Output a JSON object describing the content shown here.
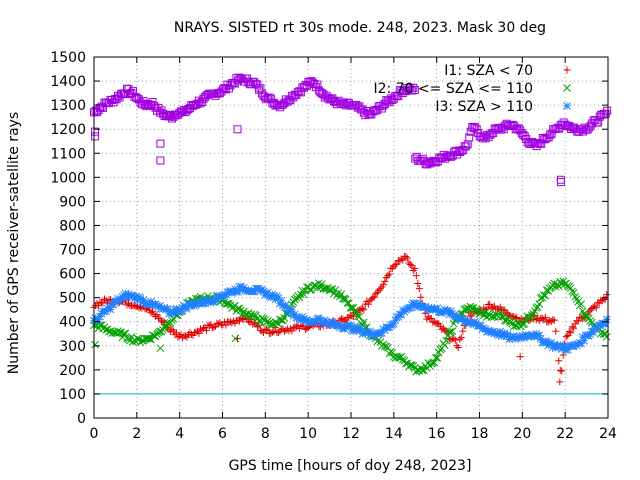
{
  "chart_data": {
    "type": "scatter",
    "title": "NRAYS. SISTED rt 30s mode. 248, 2023. Mask 30 deg",
    "xlabel": "GPS time [hours of doy 248, 2023]",
    "ylabel": "Number of GPS receiver-satellite rays",
    "xlim": [
      0,
      24
    ],
    "ylim": [
      0,
      1500
    ],
    "xticks": [
      0,
      2,
      4,
      6,
      8,
      10,
      12,
      14,
      16,
      18,
      20,
      22,
      24
    ],
    "yticks": [
      0,
      100,
      200,
      300,
      400,
      500,
      600,
      700,
      800,
      900,
      1000,
      1100,
      1200,
      1300,
      1400,
      1500
    ],
    "grid": true,
    "legend_position": "top-right",
    "threshold": {
      "value": 100,
      "color": "#00c0c0"
    },
    "series": [
      {
        "name": "I1: SZA < 70",
        "marker": "plus",
        "color": "#e00000",
        "x": [
          0.0,
          0.5,
          1.0,
          1.5,
          2.0,
          2.5,
          3.0,
          3.5,
          4.0,
          4.5,
          5.0,
          5.5,
          6.0,
          6.5,
          7.0,
          7.5,
          8.0,
          8.5,
          9.0,
          9.5,
          10.0,
          10.5,
          11.0,
          11.5,
          12.0,
          12.5,
          13.0,
          13.5,
          14.0,
          14.5,
          15.0,
          15.5,
          16.0,
          16.5,
          17.0,
          17.5,
          18.0,
          18.5,
          19.0,
          19.5,
          20.0,
          20.5,
          21.0,
          21.5,
          21.8,
          22.0,
          22.5,
          23.0,
          23.5,
          24.0
        ],
        "y": [
          470,
          485,
          490,
          480,
          470,
          450,
          420,
          370,
          340,
          350,
          365,
          380,
          390,
          400,
          420,
          390,
          360,
          365,
          370,
          375,
          380,
          385,
          390,
          400,
          420,
          450,
          500,
          560,
          640,
          670,
          610,
          420,
          390,
          350,
          300,
          430,
          440,
          470,
          450,
          430,
          400,
          420,
          410,
          400,
          170,
          320,
          400,
          430,
          470,
          510
        ],
        "outliers": [
          [
            6.7,
            330
          ],
          [
            19.9,
            255
          ],
          [
            21.75,
            150
          ]
        ]
      },
      {
        "name": "I2: 70 <= SZA <= 110",
        "marker": "x",
        "color": "#00a000",
        "x": [
          0.0,
          0.5,
          1.0,
          1.5,
          2.0,
          2.5,
          3.0,
          3.5,
          4.0,
          4.5,
          5.0,
          5.5,
          6.0,
          6.5,
          7.0,
          7.5,
          8.0,
          8.5,
          9.0,
          9.5,
          10.0,
          10.5,
          11.0,
          11.5,
          12.0,
          12.5,
          13.0,
          13.5,
          14.0,
          14.5,
          15.0,
          15.5,
          16.0,
          16.5,
          17.0,
          17.5,
          18.0,
          18.5,
          19.0,
          19.5,
          20.0,
          20.5,
          21.0,
          21.5,
          22.0,
          22.5,
          23.0,
          23.5,
          24.0
        ],
        "y": [
          390,
          370,
          355,
          340,
          320,
          330,
          350,
          400,
          440,
          480,
          495,
          500,
          490,
          460,
          440,
          420,
          400,
          390,
          430,
          500,
          540,
          550,
          540,
          510,
          460,
          400,
          340,
          300,
          260,
          240,
          200,
          210,
          250,
          330,
          420,
          460,
          440,
          420,
          430,
          390,
          390,
          440,
          510,
          550,
          560,
          510,
          420,
          370,
          340
        ],
        "outliers": [
          [
            0.05,
            305
          ],
          [
            3.1,
            290
          ],
          [
            6.6,
            330
          ]
        ]
      },
      {
        "name": "I3: SZA > 110",
        "marker": "star",
        "color": "#2080ff",
        "x": [
          0.0,
          0.5,
          1.0,
          1.5,
          2.0,
          2.5,
          3.0,
          3.5,
          4.0,
          4.5,
          5.0,
          5.5,
          6.0,
          6.5,
          7.0,
          7.5,
          8.0,
          8.5,
          9.0,
          9.5,
          10.0,
          10.5,
          11.0,
          11.5,
          12.0,
          12.5,
          13.0,
          13.5,
          14.0,
          14.5,
          15.0,
          15.5,
          16.0,
          16.5,
          17.0,
          17.5,
          18.0,
          18.5,
          19.0,
          19.5,
          20.0,
          20.5,
          21.0,
          21.5,
          22.0,
          22.5,
          23.0,
          23.5,
          24.0
        ],
        "y": [
          400,
          440,
          480,
          510,
          500,
          480,
          460,
          440,
          450,
          470,
          480,
          490,
          510,
          530,
          540,
          530,
          520,
          500,
          460,
          420,
          400,
          410,
          390,
          385,
          375,
          360,
          350,
          360,
          400,
          450,
          470,
          460,
          450,
          440,
          420,
          400,
          380,
          360,
          350,
          330,
          340,
          350,
          320,
          300,
          290,
          300,
          340,
          380,
          410
        ],
        "outliers": []
      },
      {
        "name": "",
        "marker": "square",
        "color": "#a000e0",
        "x": [
          0.0,
          0.3,
          0.6,
          0.9,
          1.2,
          1.5,
          1.8,
          2.1,
          2.4,
          2.7,
          3.0,
          3.3,
          3.6,
          3.9,
          4.2,
          4.5,
          4.8,
          5.1,
          5.4,
          5.7,
          6.0,
          6.3,
          6.6,
          6.9,
          7.2,
          7.5,
          7.8,
          8.1,
          8.4,
          8.7,
          9.0,
          9.3,
          9.6,
          9.9,
          10.2,
          10.5,
          10.8,
          11.1,
          11.4,
          11.7,
          12.0,
          12.3,
          12.6,
          12.9,
          13.2,
          13.5,
          13.8,
          14.1,
          14.4,
          14.7,
          15.0
        ],
        "y": [
          1270,
          1290,
          1310,
          1320,
          1340,
          1360,
          1350,
          1320,
          1300,
          1310,
          1280,
          1260,
          1250,
          1270,
          1270,
          1290,
          1310,
          1320,
          1340,
          1350,
          1360,
          1380,
          1400,
          1410,
          1400,
          1390,
          1360,
          1330,
          1310,
          1300,
          1320,
          1340,
          1360,
          1380,
          1400,
          1370,
          1340,
          1320,
          1310,
          1300,
          1300,
          1290,
          1270,
          1260,
          1280,
          1300,
          1320,
          1340,
          1360,
          1370,
          1360
        ],
        "x2": [
          15.0,
          15.3,
          15.6,
          15.9,
          16.2,
          16.5,
          16.8,
          17.1,
          17.4,
          17.7,
          18.0,
          18.3,
          18.6,
          18.9,
          19.2,
          19.5,
          19.8,
          20.1,
          20.4,
          20.7,
          21.0,
          21.3,
          21.6,
          21.9,
          22.2,
          22.5,
          22.8,
          23.1,
          23.4,
          23.7,
          24.0
        ],
        "y2": [
          1080,
          1070,
          1060,
          1070,
          1080,
          1090,
          1100,
          1110,
          1130,
          1210,
          1180,
          1160,
          1190,
          1200,
          1210,
          1220,
          1200,
          1170,
          1140,
          1130,
          1160,
          1180,
          1200,
          1230,
          1210,
          1200,
          1200,
          1210,
          1230,
          1250,
          1270
        ],
        "outliers": [
          [
            0.05,
            1190
          ],
          [
            0.05,
            1170
          ],
          [
            3.1,
            1140
          ],
          [
            3.1,
            1070
          ],
          [
            6.7,
            1200
          ],
          [
            21.8,
            990
          ],
          [
            21.8,
            980
          ]
        ]
      }
    ]
  }
}
